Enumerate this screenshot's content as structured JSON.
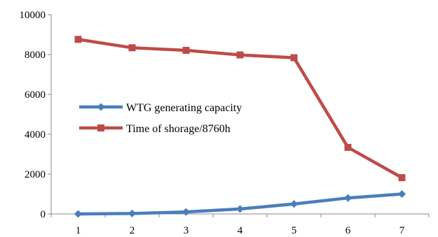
{
  "chart_data": {
    "type": "line",
    "title": "",
    "xlabel": "",
    "ylabel": "",
    "x": [
      1,
      2,
      3,
      4,
      5,
      6,
      7
    ],
    "ylim": [
      0,
      10000
    ],
    "yticks": [
      0,
      2000,
      4000,
      6000,
      8000,
      10000
    ],
    "grid": false,
    "legend_position": "center-left",
    "series": [
      {
        "name": "WTG generating capacity",
        "color": "#4a7ebb",
        "marker": "diamond",
        "values": [
          0,
          20,
          100,
          250,
          500,
          800,
          1000
        ]
      },
      {
        "name": "Time of shorage/8760h",
        "color": "#be4b48",
        "marker": "square",
        "values": [
          8760,
          8340,
          8210,
          7980,
          7840,
          3340,
          1820
        ]
      }
    ]
  }
}
